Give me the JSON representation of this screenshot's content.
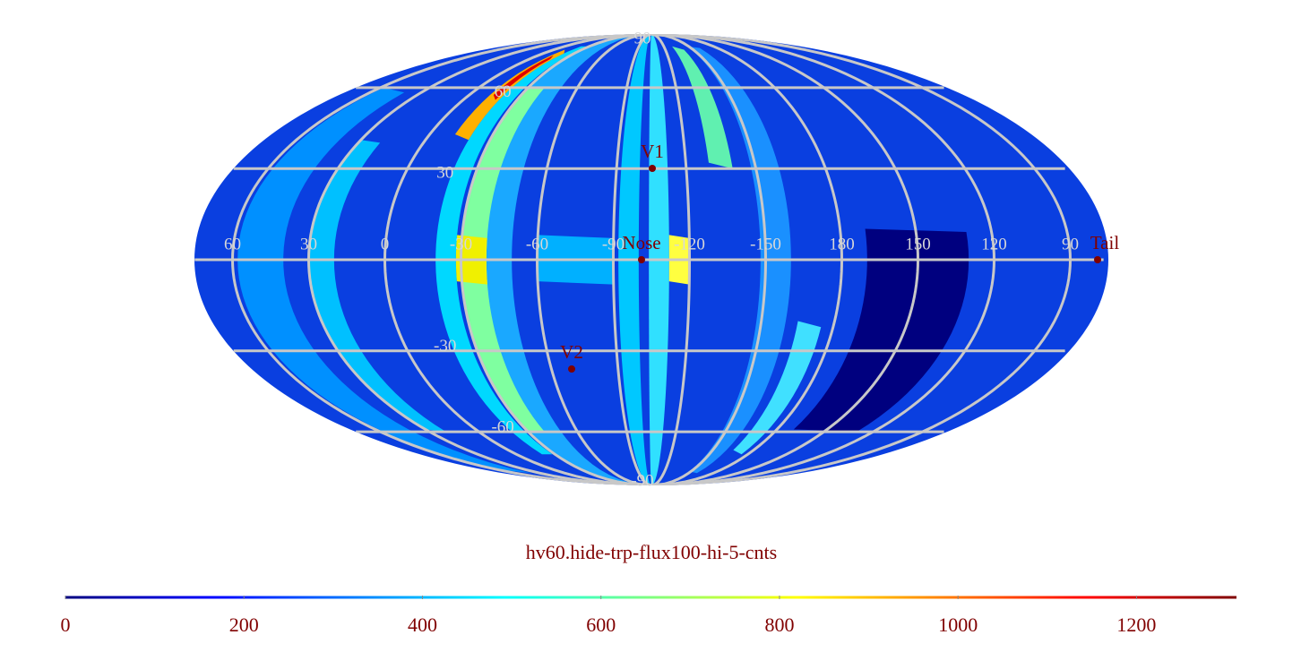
{
  "chart_data": {
    "type": "mollweide-map",
    "title": "hv60.hide-trp-flux100-hi-5-cnts",
    "lon_ticks": [
      60,
      30,
      0,
      -30,
      -60,
      -90,
      -120,
      -150,
      180,
      150,
      120,
      90
    ],
    "lat_ticks": [
      90,
      60,
      30,
      -30,
      -60,
      -90
    ],
    "markers": [
      "V1",
      "Nose",
      "V2",
      "Tail"
    ],
    "grid_color": "#c8c8c8",
    "marker_color": "#800000",
    "colormap": [
      "#00007f",
      "#0000ff",
      "#007fff",
      "#00ffff",
      "#7fff7f",
      "#ffff00",
      "#ff7f00",
      "#ff0000",
      "#7f0000"
    ],
    "clim": [
      0,
      1312
    ],
    "cticks": [
      0,
      200,
      400,
      600,
      800,
      1000,
      1200
    ]
  }
}
